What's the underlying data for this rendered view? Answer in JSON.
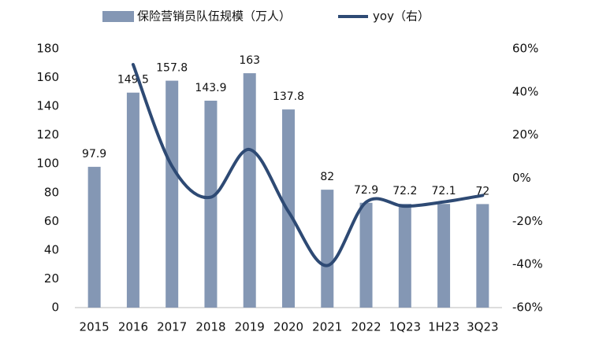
{
  "chart_data": {
    "type": "bar_line",
    "categories": [
      "2015",
      "2016",
      "2017",
      "2018",
      "2019",
      "2020",
      "2021",
      "2022",
      "1Q23",
      "1H23",
      "3Q23"
    ],
    "series": [
      {
        "name": "保险营销员队伍规模（万人）",
        "color": "#8497b4",
        "type": "bar",
        "values": [
          97.9,
          149.5,
          157.8,
          143.9,
          163,
          137.8,
          82,
          72.9,
          72.2,
          72.1,
          72
        ]
      },
      {
        "name": "yoy（右）",
        "color": "#2e4a74",
        "type": "line",
        "axis": "y2",
        "values": [
          null,
          52.7,
          5.6,
          -8.8,
          13.3,
          -15.5,
          -40.5,
          -11.1,
          -13,
          -11,
          -8
        ]
      }
    ],
    "ylim": [
      0,
      180
    ],
    "yticks": [
      0,
      20,
      40,
      60,
      80,
      100,
      120,
      140,
      160,
      180
    ],
    "y2lim": [
      -60,
      60
    ],
    "y2ticks": [
      {
        "value": -60,
        "label": "-60%"
      },
      {
        "value": -40,
        "label": "-40%"
      },
      {
        "value": -20,
        "label": "-20%"
      },
      {
        "value": 0,
        "label": "0%"
      },
      {
        "value": 20,
        "label": "20%"
      },
      {
        "value": 40,
        "label": "40%"
      },
      {
        "value": 60,
        "label": "60%"
      }
    ],
    "legend": "top"
  }
}
